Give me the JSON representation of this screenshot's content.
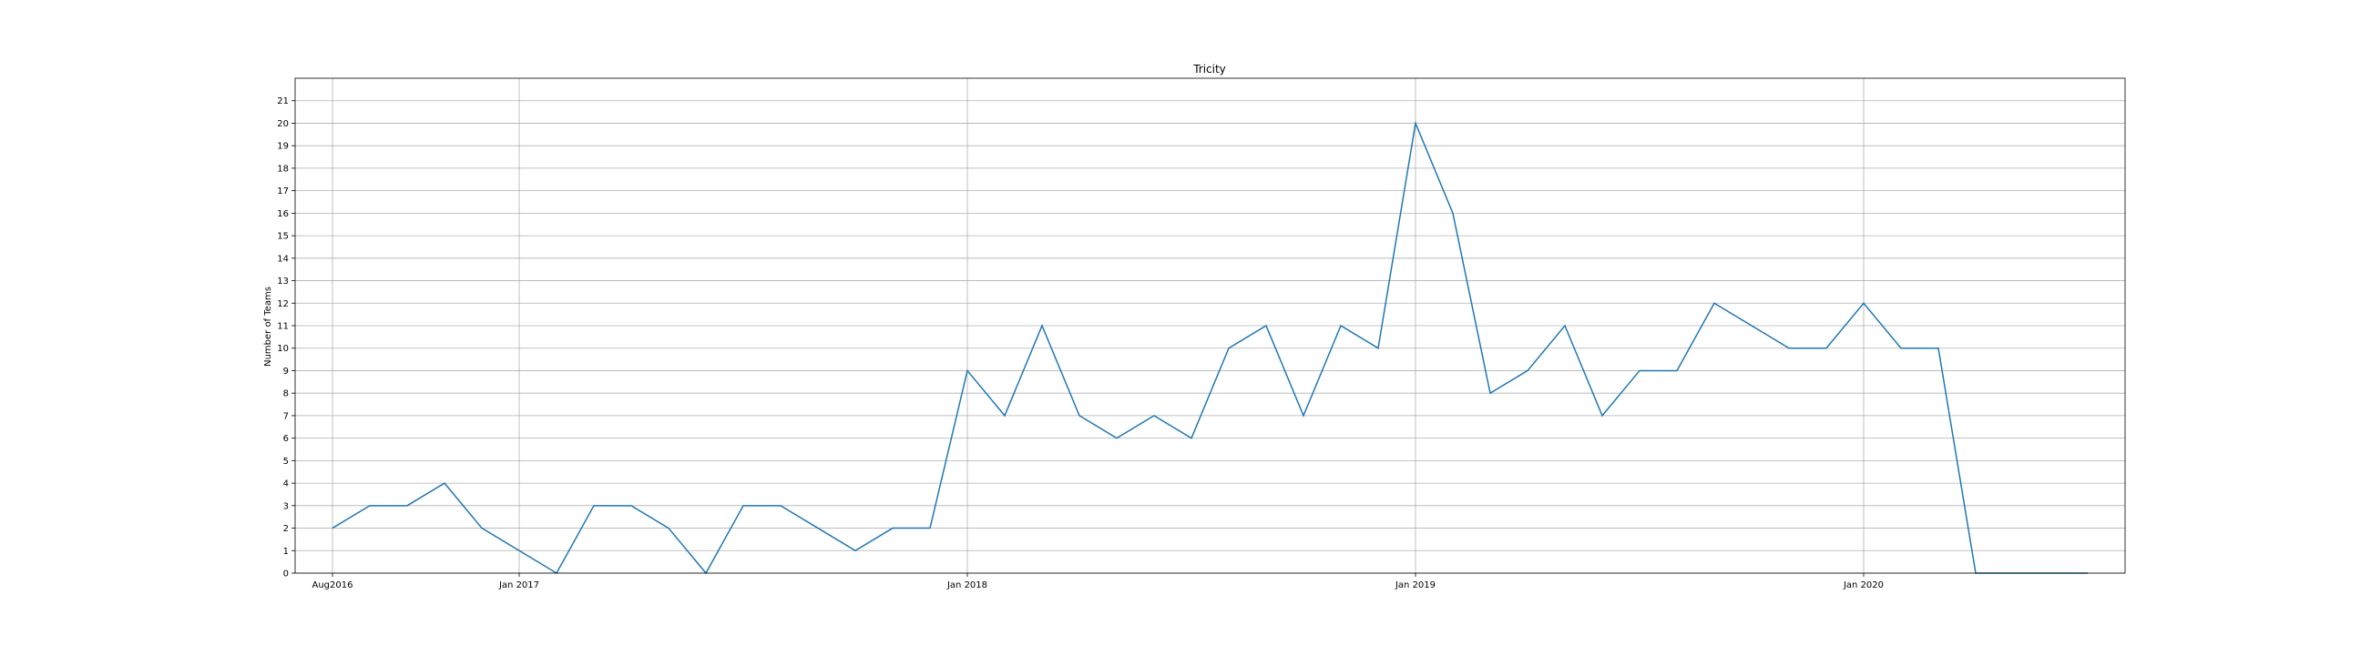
{
  "chart_data": {
    "type": "line",
    "title": "Tricity",
    "xlabel": "",
    "ylabel": "Number of Teams",
    "x": [
      "2016-08",
      "2016-09",
      "2016-10",
      "2016-11",
      "2016-12",
      "2017-01",
      "2017-02",
      "2017-03",
      "2017-04",
      "2017-05",
      "2017-06",
      "2017-07",
      "2017-08",
      "2017-09",
      "2017-10",
      "2017-11",
      "2017-12",
      "2018-01",
      "2018-02",
      "2018-03",
      "2018-04",
      "2018-05",
      "2018-06",
      "2018-07",
      "2018-08",
      "2018-09",
      "2018-10",
      "2018-11",
      "2018-12",
      "2019-01",
      "2019-02",
      "2019-03",
      "2019-04",
      "2019-05",
      "2019-06",
      "2019-07",
      "2019-08",
      "2019-09",
      "2019-10",
      "2019-11",
      "2019-12",
      "2020-01",
      "2020-02",
      "2020-03",
      "2020-04",
      "2020-05",
      "2020-06",
      "2020-07"
    ],
    "series": [
      {
        "values": [
          2,
          3,
          3,
          4,
          2,
          1,
          0,
          3,
          3,
          2,
          0,
          3,
          3,
          2,
          1,
          2,
          2,
          9,
          7,
          11,
          7,
          6,
          7,
          6,
          10,
          11,
          7,
          11,
          10,
          20,
          16,
          8,
          9,
          11,
          7,
          9,
          9,
          12,
          11,
          10,
          10,
          12,
          10,
          10,
          0,
          0,
          0,
          0
        ],
        "color": "#1f77b4"
      }
    ],
    "x_ticks": [
      {
        "label": "Aug2016",
        "x": "2016-08"
      },
      {
        "label": "Jan 2017",
        "x": "2017-01"
      },
      {
        "label": "Jan 2018",
        "x": "2018-01"
      },
      {
        "label": "Jan 2019",
        "x": "2019-01"
      },
      {
        "label": "Jan 2020",
        "x": "2020-01"
      }
    ],
    "y_ticks": [
      0,
      1,
      2,
      3,
      4,
      5,
      6,
      7,
      8,
      9,
      10,
      11,
      12,
      13,
      14,
      15,
      16,
      17,
      18,
      19,
      20,
      21
    ],
    "ylim": [
      0,
      22
    ],
    "xlim": [
      "2016-07",
      "2020-08"
    ],
    "grid": true,
    "legend": "none"
  }
}
